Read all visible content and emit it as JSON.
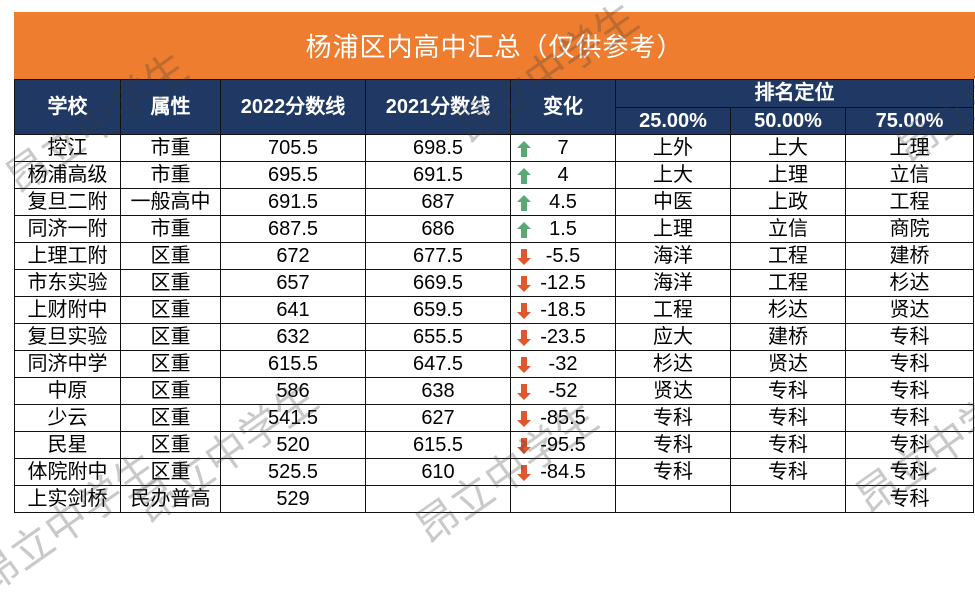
{
  "title": "杨浦区内高中汇总（仅供参考）",
  "watermark": "昂立中学生",
  "table": {
    "headers": [
      "学校",
      "属性",
      "2022分数线",
      "2021分数线",
      "变化"
    ],
    "group_header": "排名定位",
    "sub_headers": [
      "25.00%",
      "50.00%",
      "75.00%"
    ],
    "rows": [
      [
        "控江",
        "市重",
        705.5,
        698.5,
        7,
        "上外",
        "上大",
        "上理"
      ],
      [
        "杨浦高级",
        "市重",
        695.5,
        691.5,
        4,
        "上大",
        "上理",
        "立信"
      ],
      [
        "复旦二附",
        "一般高中",
        691.5,
        687,
        4.5,
        "中医",
        "上政",
        "工程"
      ],
      [
        "同济一附",
        "市重",
        687.5,
        686,
        1.5,
        "上理",
        "立信",
        "商院"
      ],
      [
        "上理工附",
        "区重",
        672,
        677.5,
        -5.5,
        "海洋",
        "工程",
        "建桥"
      ],
      [
        "市东实验",
        "区重",
        657,
        669.5,
        -12.5,
        "海洋",
        "工程",
        "杉达"
      ],
      [
        "上财附中",
        "区重",
        641,
        659.5,
        -18.5,
        "工程",
        "杉达",
        "贤达"
      ],
      [
        "复旦实验",
        "区重",
        632,
        655.5,
        -23.5,
        "应大",
        "建桥",
        "专科"
      ],
      [
        "同济中学",
        "区重",
        615.5,
        647.5,
        -32,
        "杉达",
        "贤达",
        "专科"
      ],
      [
        "中原",
        "区重",
        586,
        638,
        -52,
        "贤达",
        "专科",
        "专科"
      ],
      [
        "少云",
        "区重",
        541.5,
        627,
        -85.5,
        "专科",
        "专科",
        "专科"
      ],
      [
        "民星",
        "区重",
        520,
        615.5,
        -95.5,
        "专科",
        "专科",
        "专科"
      ],
      [
        "体院附中",
        "区重",
        525.5,
        610,
        -84.5,
        "专科",
        "专科",
        "专科"
      ],
      [
        "上实剑桥",
        "民办普高",
        529,
        null,
        null,
        null,
        null,
        "专科"
      ]
    ]
  }
}
